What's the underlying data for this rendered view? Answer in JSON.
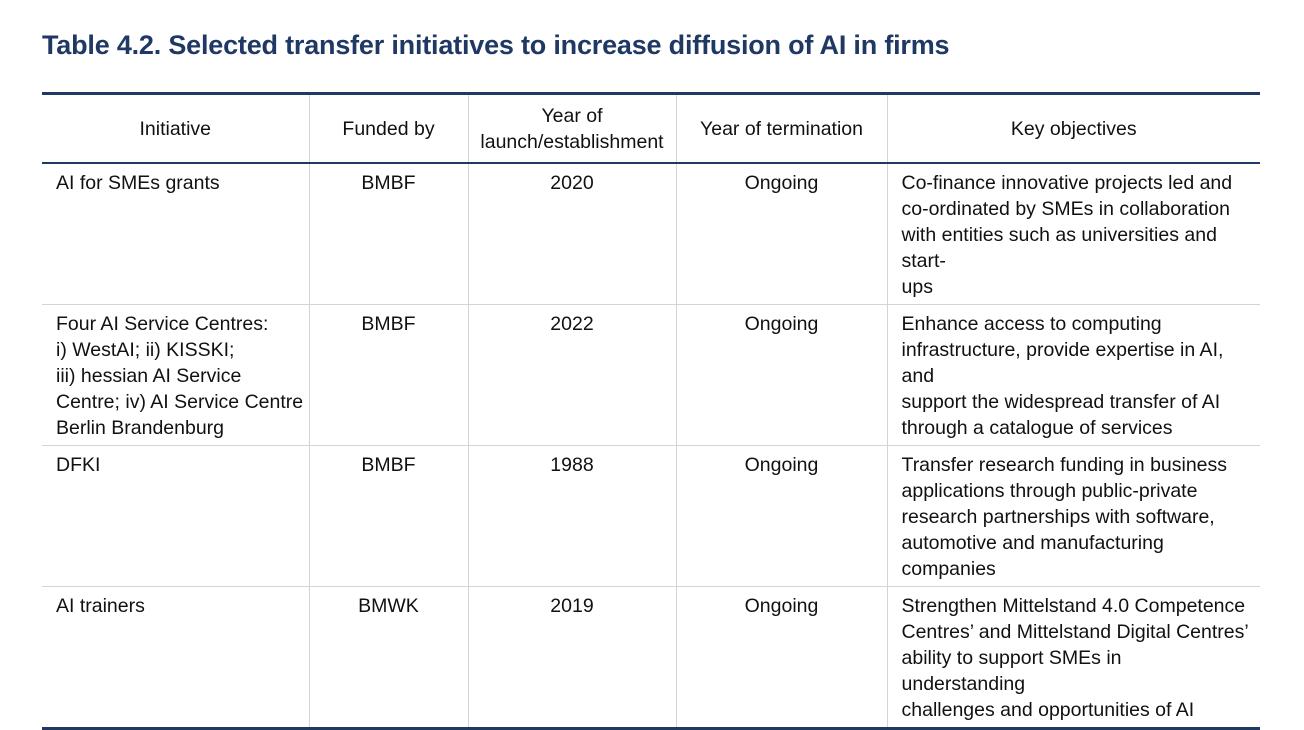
{
  "title": "Table 4.2. Selected transfer initiatives to increase diffusion of AI in firms",
  "headers": {
    "initiative": "Initiative",
    "funded_by": "Funded by",
    "year_launch_line1": "Year of",
    "year_launch_line2": "launch/establishment",
    "year_termination": "Year of termination",
    "key_objectives": "Key objectives"
  },
  "rows": [
    {
      "initiative": [
        "AI for SMEs grants"
      ],
      "funded_by": "BMBF",
      "year_launch": "2020",
      "year_termination": "Ongoing",
      "objectives": [
        "Co-finance innovative projects led and",
        "co-ordinated by SMEs in collaboration",
        "with entities such as universities and start-",
        "ups"
      ]
    },
    {
      "initiative": [
        "Four AI Service Centres:",
        "i) WestAI; ii) KISSKI;",
        "iii) hessian AI Service",
        "Centre; iv) AI Service Centre",
        "Berlin Brandenburg"
      ],
      "funded_by": "BMBF",
      "year_launch": "2022",
      "year_termination": "Ongoing",
      "objectives": [
        "Enhance access to computing",
        "infrastructure, provide expertise in AI, and",
        "support the widespread transfer of AI",
        "through a catalogue of services"
      ]
    },
    {
      "initiative": [
        "DFKI"
      ],
      "funded_by": "BMBF",
      "year_launch": "1988",
      "year_termination": "Ongoing",
      "objectives": [
        "Transfer research funding in business",
        "applications through public-private",
        "research partnerships with software,",
        "automotive and manufacturing companies"
      ]
    },
    {
      "initiative": [
        "AI trainers"
      ],
      "funded_by": "BMWK",
      "year_launch": "2019",
      "year_termination": "Ongoing",
      "objectives": [
        "Strengthen Mittelstand 4.0 Competence",
        "Centres’ and Mittelstand Digital Centres’",
        "ability to support SMEs in understanding",
        "challenges and opportunities of AI"
      ]
    }
  ],
  "colors": {
    "title": "#1f3864",
    "rule": "#1f3864",
    "cell_border": "#d4d4d4"
  }
}
